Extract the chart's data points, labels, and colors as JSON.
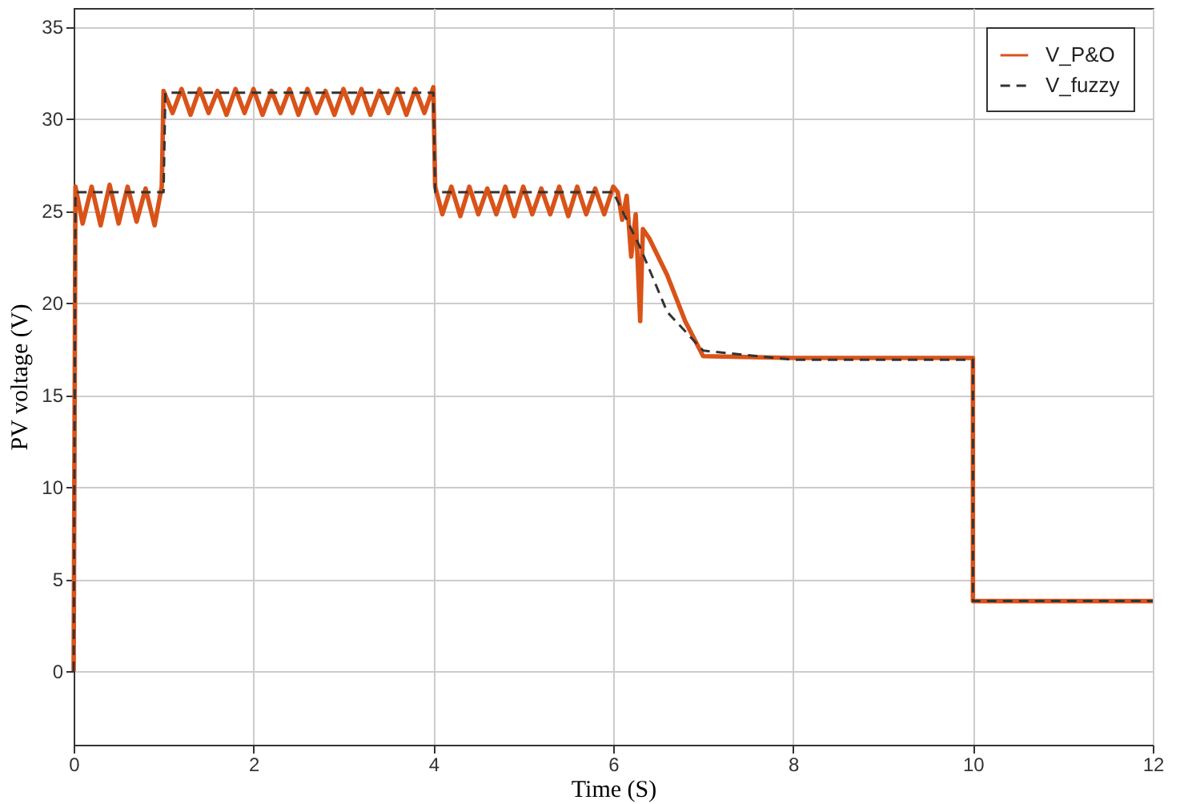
{
  "chart_data": {
    "type": "line",
    "xlabel": "Time (S)",
    "ylabel": "PV voltage (V)",
    "xlim": [
      0,
      12
    ],
    "xticks": [
      0,
      2,
      4,
      6,
      8,
      10,
      12
    ],
    "ylim": [
      -4,
      36
    ],
    "yticks": [
      0,
      5,
      10,
      15,
      20,
      25,
      30,
      35
    ],
    "grid": true,
    "legend": "top right",
    "series": [
      {
        "name": "V_P&O",
        "color": "#d95319",
        "line_style": "solid",
        "x": [
          0,
          0.02,
          0.1,
          0.2,
          0.3,
          0.4,
          0.5,
          0.6,
          0.7,
          0.8,
          0.9,
          0.98,
          1.0,
          1.1,
          1.2,
          1.3,
          1.4,
          1.5,
          1.6,
          1.7,
          1.8,
          1.9,
          2.0,
          2.1,
          2.2,
          2.3,
          2.4,
          2.5,
          2.6,
          2.7,
          2.8,
          2.9,
          3.0,
          3.1,
          3.2,
          3.3,
          3.4,
          3.5,
          3.6,
          3.7,
          3.8,
          3.9,
          4.0,
          4.02,
          4.1,
          4.2,
          4.3,
          4.4,
          4.5,
          4.6,
          4.7,
          4.8,
          4.9,
          5.0,
          5.1,
          5.2,
          5.3,
          5.4,
          5.5,
          5.6,
          5.7,
          5.8,
          5.9,
          6.0,
          6.05,
          6.1,
          6.15,
          6.2,
          6.25,
          6.3,
          6.33,
          6.4,
          6.6,
          6.8,
          7.0,
          8.0,
          10.0,
          10.0,
          12.0
        ],
        "values": [
          0,
          26.3,
          24.3,
          26.3,
          24.2,
          26.4,
          24.3,
          26.3,
          24.4,
          26.2,
          24.2,
          26.3,
          31.5,
          30.3,
          31.6,
          30.2,
          31.6,
          30.3,
          31.5,
          30.2,
          31.6,
          30.3,
          31.6,
          30.2,
          31.5,
          30.3,
          31.6,
          30.2,
          31.6,
          30.3,
          31.5,
          30.2,
          31.6,
          30.3,
          31.6,
          30.2,
          31.5,
          30.3,
          31.6,
          30.2,
          31.6,
          30.3,
          31.7,
          26.3,
          24.8,
          26.3,
          24.7,
          26.3,
          24.8,
          26.2,
          24.8,
          26.3,
          24.7,
          26.3,
          24.8,
          26.2,
          24.8,
          26.3,
          24.7,
          26.3,
          24.8,
          26.2,
          24.8,
          26.3,
          26.0,
          24.5,
          25.8,
          22.5,
          24.8,
          19.0,
          24.0,
          23.5,
          21.5,
          19.0,
          17.1,
          17.0,
          17.0,
          3.8,
          3.8
        ]
      },
      {
        "name": "V_fuzzy",
        "color": "#333333",
        "line_style": "dashed",
        "x": [
          0,
          0.02,
          1.0,
          1.02,
          4.0,
          4.02,
          6.0,
          6.3,
          6.6,
          7.0,
          8.0,
          10.0,
          10.0,
          12.0
        ],
        "values": [
          0,
          26.0,
          26.0,
          31.4,
          31.4,
          26.0,
          26.0,
          23.0,
          19.5,
          17.4,
          16.9,
          16.9,
          3.8,
          3.8
        ]
      }
    ]
  }
}
